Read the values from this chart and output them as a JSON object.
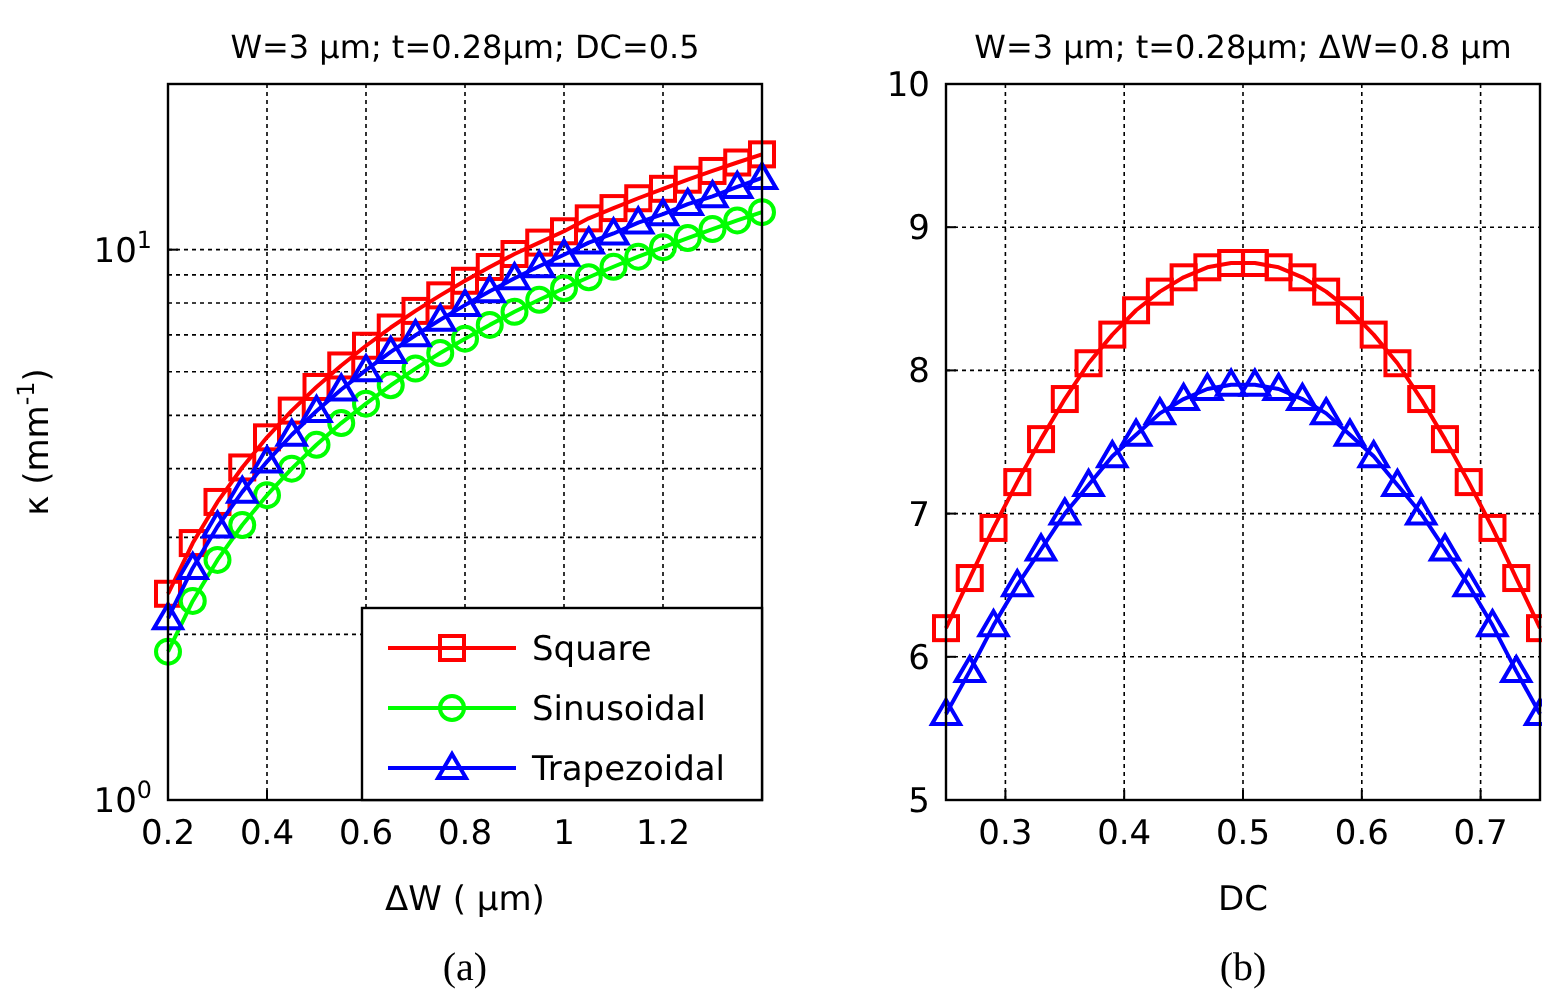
{
  "chart_data": [
    {
      "type": "line",
      "title": "W=3 μm; t=0.28μm; DC=0.5",
      "xlabel": "ΔW ( μm)",
      "ylabel": "κ (mm$^{-1}$)",
      "annotations": [
        "(a)"
      ],
      "x": [
        0.2,
        0.25,
        0.3,
        0.35,
        0.4,
        0.45,
        0.5,
        0.55,
        0.6,
        0.65,
        0.7,
        0.75,
        0.8,
        0.85,
        0.9,
        0.95,
        1.0,
        1.05,
        1.1,
        1.15,
        1.2,
        1.25,
        1.3,
        1.35,
        1.4
      ],
      "series": [
        {
          "name": "Square",
          "color": "#ff0000",
          "marker": "square",
          "values": [
            2.37,
            2.93,
            3.48,
            4.02,
            4.56,
            5.1,
            5.63,
            6.16,
            6.69,
            7.22,
            7.74,
            8.26,
            8.78,
            9.3,
            9.82,
            10.3,
            10.8,
            11.4,
            11.9,
            12.4,
            12.9,
            13.4,
            13.9,
            14.4,
            14.9
          ]
        },
        {
          "name": "Sinusoidal",
          "color": "#00ff00",
          "marker": "circle",
          "values": [
            1.86,
            2.3,
            2.73,
            3.16,
            3.58,
            4.0,
            4.42,
            4.84,
            5.25,
            5.67,
            6.08,
            6.49,
            6.89,
            7.3,
            7.71,
            8.11,
            8.51,
            8.91,
            9.31,
            9.71,
            10.1,
            10.5,
            10.9,
            11.3,
            11.7
          ]
        },
        {
          "name": "Trapezoidal",
          "color": "#0000ff",
          "marker": "triangle",
          "values": [
            2.14,
            2.64,
            3.14,
            3.63,
            4.12,
            4.61,
            5.09,
            5.57,
            6.04,
            6.52,
            6.99,
            7.46,
            7.93,
            8.4,
            8.87,
            9.33,
            9.79,
            10.3,
            10.7,
            11.2,
            11.6,
            12.1,
            12.5,
            13.0,
            13.5
          ]
        }
      ],
      "xlim": [
        0.2,
        1.4
      ],
      "xticks": [
        0.2,
        0.4,
        0.6,
        0.8,
        1,
        1.2
      ],
      "ylim": [
        1,
        20
      ],
      "yticks": [
        {
          "value": 1,
          "label": "10$^{0}$"
        },
        {
          "value": 10,
          "label": "10$^{1}$"
        }
      ],
      "log": "y",
      "grid": true,
      "legend": "bottom right",
      "line_style": "solid"
    },
    {
      "type": "line",
      "title": "W=3 μm; t=0.28μm; ΔW=0.8 μm",
      "xlabel": "DC",
      "annotations": [
        "(b)"
      ],
      "x": [
        0.25,
        0.27,
        0.29,
        0.31,
        0.33,
        0.35,
        0.37,
        0.39,
        0.41,
        0.43,
        0.45,
        0.47,
        0.49,
        0.51,
        0.53,
        0.55,
        0.57,
        0.59,
        0.61,
        0.63,
        0.65,
        0.67,
        0.69,
        0.71,
        0.73,
        0.75
      ],
      "series": [
        {
          "color": "#ff0000",
          "marker": "square",
          "values": [
            6.2,
            6.55,
            6.9,
            7.22,
            7.52,
            7.8,
            8.05,
            8.25,
            8.42,
            8.55,
            8.65,
            8.72,
            8.75,
            8.75,
            8.72,
            8.65,
            8.55,
            8.42,
            8.25,
            8.05,
            7.8,
            7.52,
            7.22,
            6.9,
            6.55,
            6.2
          ]
        },
        {
          "color": "#0000ff",
          "marker": "triangle",
          "values": [
            5.6,
            5.9,
            6.22,
            6.5,
            6.75,
            7.0,
            7.2,
            7.4,
            7.55,
            7.7,
            7.8,
            7.87,
            7.9,
            7.9,
            7.87,
            7.8,
            7.7,
            7.55,
            7.4,
            7.2,
            7.0,
            6.75,
            6.5,
            6.22,
            5.9,
            5.6
          ]
        }
      ],
      "xlim": [
        0.25,
        0.75
      ],
      "xticks": [
        0.3,
        0.4,
        0.5,
        0.6,
        0.7
      ],
      "ylim": [
        5,
        10
      ],
      "yticks": [
        5,
        6,
        7,
        8,
        9,
        10
      ],
      "grid": true,
      "line_style": "solid"
    }
  ]
}
